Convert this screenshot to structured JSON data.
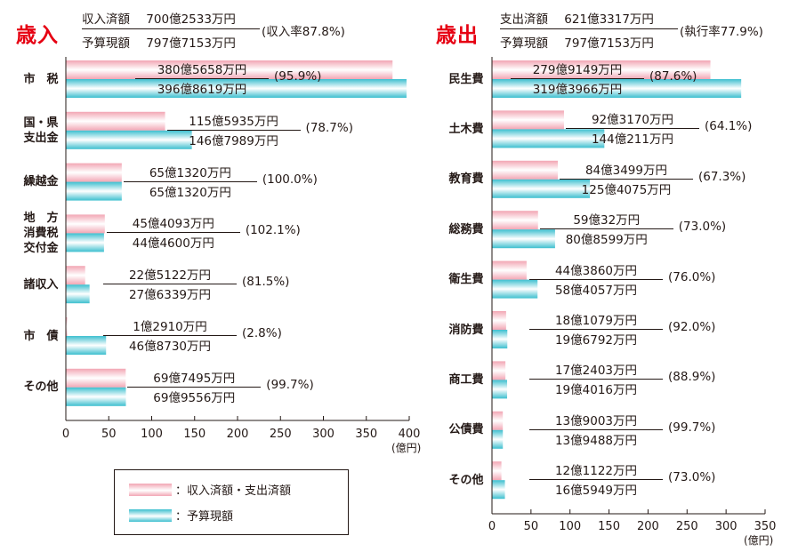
{
  "income": {
    "title": "歳入",
    "summary": {
      "actual_label": "収入済額",
      "actual_value": "700億2533万円",
      "budget_label": "予算現額",
      "budget_value": "797億7153万円",
      "rate": "(収入率87.8%)"
    }
  },
  "expenditure": {
    "title": "歳出",
    "summary": {
      "actual_label": "支出済額",
      "actual_value": "621億3317万円",
      "budget_label": "予算現額",
      "budget_value": "797億7153万円",
      "rate": "(執行率77.9%)"
    }
  },
  "legend": {
    "actual": "：収入済額・支出済額",
    "budget": "：予算現額"
  },
  "colors": {
    "actual": "#f2a6b4",
    "budget": "#3dbfcf",
    "title": "#e60012"
  },
  "chart_data": [
    {
      "type": "bar",
      "orientation": "horizontal",
      "xlim": [
        0,
        400
      ],
      "ticks": [
        "0",
        "50",
        "100",
        "150",
        "200",
        "250",
        "300",
        "350",
        "400"
      ],
      "unit": "(億円)",
      "categories": [
        "市　税",
        "国・県\n支出金",
        "繰越金",
        "地　方\n消費税\n交付金",
        "諸収入",
        "市　債",
        "その他"
      ],
      "series": [
        {
          "name": "収入済額・支出済額",
          "values": [
            380.5658,
            115.5935,
            65.132,
            45.4093,
            22.5122,
            1.291,
            69.7495
          ],
          "labels": [
            "380億5658万円",
            "115億5935万円",
            "65億1320万円",
            "45億4093万円",
            "22億5122万円",
            "1億2910万円",
            "69億7495万円"
          ]
        },
        {
          "name": "予算現額",
          "values": [
            396.8619,
            146.7989,
            65.132,
            44.46,
            27.6339,
            46.873,
            69.9556
          ],
          "labels": [
            "396億8619万円",
            "146億7989万円",
            "65億1320万円",
            "44億4600万円",
            "27億6339万円",
            "46億8730万円",
            "69億9556万円"
          ]
        }
      ],
      "rates": [
        "(95.9%)",
        "(78.7%)",
        "(100.0%)",
        "(102.1%)",
        "(81.5%)",
        "(2.8%)",
        "(99.7%)"
      ]
    },
    {
      "type": "bar",
      "orientation": "horizontal",
      "xlim": [
        0,
        350
      ],
      "ticks": [
        "0",
        "50",
        "100",
        "150",
        "200",
        "250",
        "300",
        "350"
      ],
      "unit": "(億円)",
      "categories": [
        "民生費",
        "土木費",
        "教育費",
        "総務費",
        "衛生費",
        "消防費",
        "商工費",
        "公債費",
        "その他"
      ],
      "series": [
        {
          "name": "収入済額・支出済額",
          "values": [
            279.9149,
            92.317,
            84.3499,
            59.0032,
            44.386,
            18.1079,
            17.2403,
            13.9003,
            12.1122
          ],
          "labels": [
            "279億9149万円",
            "92億3170万円",
            "84億3499万円",
            "59億32万円",
            "44億3860万円",
            "18億1079万円",
            "17億2403万円",
            "13億9003万円",
            "12億1122万円"
          ]
        },
        {
          "name": "予算現額",
          "values": [
            319.3966,
            144.0211,
            125.4075,
            80.8599,
            58.4057,
            19.6792,
            19.4016,
            13.9488,
            16.5949
          ],
          "labels": [
            "319億3966万円",
            "144億211万円",
            "125億4075万円",
            "80億8599万円",
            "58億4057万円",
            "19億6792万円",
            "19億4016万円",
            "13億9488万円",
            "16億5949万円"
          ]
        }
      ],
      "rates": [
        "(87.6%)",
        "(64.1%)",
        "(67.3%)",
        "(73.0%)",
        "(76.0%)",
        "(92.0%)",
        "(88.9%)",
        "(99.7%)",
        "(73.0%)"
      ]
    }
  ]
}
